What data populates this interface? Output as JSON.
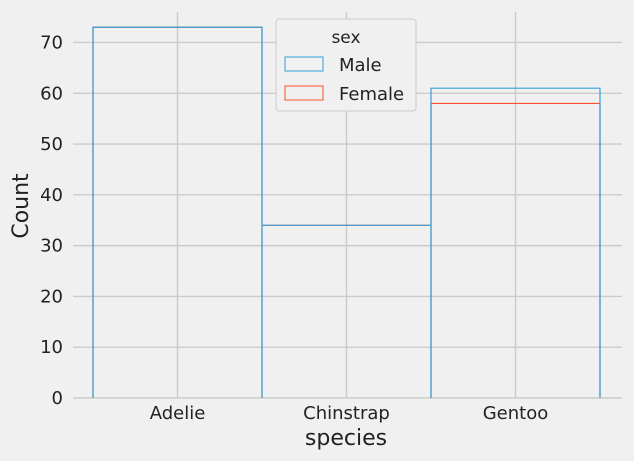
{
  "chart_data": {
    "type": "bar",
    "style": "step-outline histogram (fivethirtyeight)",
    "categories": [
      "Adelie",
      "Chinstrap",
      "Gentoo"
    ],
    "series": [
      {
        "name": "Male",
        "values": [
          73,
          34,
          61
        ],
        "color": "#30a2da"
      },
      {
        "name": "Female",
        "values": [
          73,
          34,
          58
        ],
        "color": "#fc4f30"
      }
    ],
    "xlabel": "species",
    "ylabel": "Count",
    "ylim": [
      0,
      76
    ],
    "yticks": [
      0,
      10,
      20,
      30,
      40,
      50,
      60,
      70
    ],
    "grid": true,
    "legend": {
      "title": "sex",
      "placement": "top-center"
    }
  },
  "colors": {
    "background": "#f0f0f0",
    "grid": "#cbcbcb",
    "text": "#222222"
  }
}
